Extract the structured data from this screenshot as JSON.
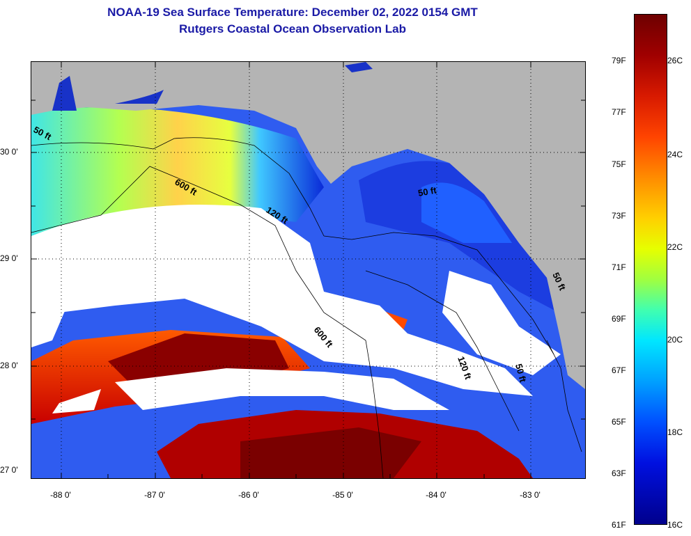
{
  "title": {
    "line1": "NOAA-19 Sea Surface Temperature:  December 02, 2022 0154 GMT",
    "line2": "Rutgers Coastal Ocean Observation Lab"
  },
  "axes": {
    "lat_labels": [
      "30 0'",
      "29 0'",
      "28 0'",
      "27 0'"
    ],
    "lon_labels": [
      "-88 0'",
      "-87 0'",
      "-86 0'",
      "-85 0'",
      "-84 0'",
      "-83 0'"
    ]
  },
  "contours": {
    "ft50_west": "50 ft",
    "ft600_a": "600 ft",
    "ft120_a": "120 ft",
    "ft50_east": "50 ft",
    "ft600_b": "600 ft",
    "ft120_b": "120 ft",
    "ft50_c": "50 ft",
    "ft50_d": "50 ft"
  },
  "colorbar": {
    "fahrenheit": [
      "79F",
      "77F",
      "75F",
      "73F",
      "71F",
      "69F",
      "67F",
      "65F",
      "63F",
      "61F"
    ],
    "celsius": [
      "26C",
      "24C",
      "22C",
      "20C",
      "18C",
      "16C"
    ]
  },
  "colors": {
    "land": "#b4b4b4",
    "cloud": "#ffffff",
    "title": "#1a1aa6"
  }
}
